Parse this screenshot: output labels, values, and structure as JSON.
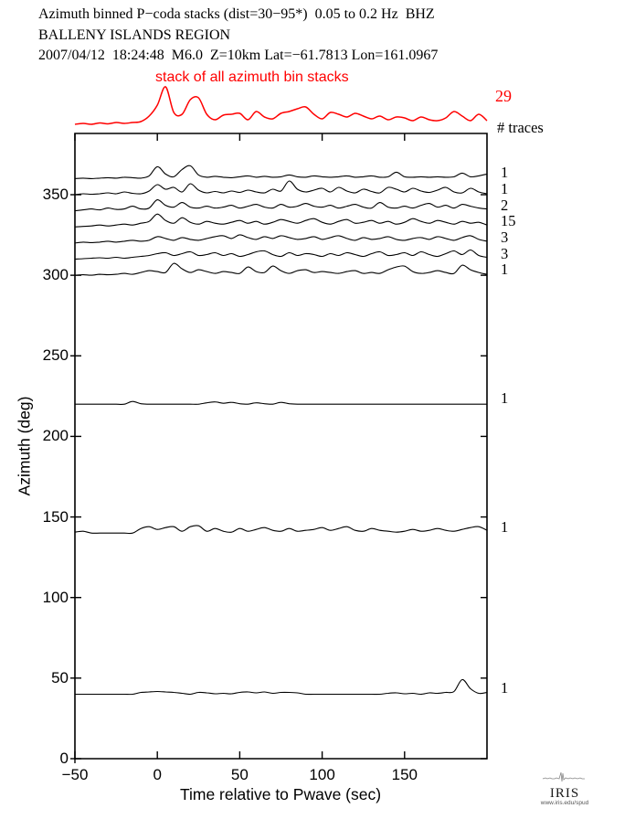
{
  "header": {
    "line1": "Azimuth binned P−coda stacks (dist=30−95*)  0.05 to 0.2 Hz  BHZ",
    "line2": "BALLENY ISLANDS REGION",
    "line3": "2007/04/12  18:24:48  M6.0  Z=10km Lat=−61.7813 Lon=161.0967"
  },
  "stack": {
    "label": "stack of all azimuth bin stacks",
    "count": "29"
  },
  "traces_header": "# traces",
  "logo": {
    "name": "IRIS",
    "url": "www.iris.edu/spud",
    "icon": "seismogram-squiggle-icon"
  },
  "colors": {
    "accent_red": "#ff0000",
    "ink": "#000000",
    "logo_grey": "#888888"
  },
  "chart_data": {
    "type": "line",
    "title": "Azimuth binned P−coda stacks (dist=30−95*) 0.05 to 0.2 Hz BHZ",
    "subtitle": "BALLENY ISLANDS REGION — 2007/04/12 18:24:48 M6.0 Z=10km Lat=−61.7813 Lon=161.0967",
    "xlabel": "Time relative to Pwave (sec)",
    "ylabel": "Azimuth (deg)",
    "xlim": [
      -50,
      200
    ],
    "ylim": [
      0,
      388
    ],
    "x_ticks": [
      -50,
      0,
      50,
      100,
      150
    ],
    "y_ticks": [
      0,
      50,
      100,
      150,
      200,
      250,
      300,
      350
    ],
    "grid": false,
    "legend": "none",
    "x_start": -50,
    "x_step": 5,
    "amplitude_units": "relative amplitude (rendered px above baseline)",
    "stack_trace": {
      "label": "stack of all azimuth bin stacks",
      "num_traces": 29,
      "color": "#ff0000",
      "samples": [
        1,
        2,
        1,
        2.5,
        1.5,
        3,
        2,
        3,
        4,
        10,
        22,
        42,
        14,
        12,
        28,
        30,
        12,
        6,
        11,
        12,
        13,
        6,
        15,
        9,
        7,
        13,
        15,
        18,
        20,
        12,
        7,
        14,
        12,
        9,
        13,
        10,
        7,
        10,
        6,
        9,
        8,
        5,
        9,
        6,
        5,
        8,
        15,
        10,
        5,
        12,
        5
      ]
    },
    "bin_traces": [
      {
        "azimuth": 360,
        "num_traces": 1,
        "samples": [
          0,
          0.5,
          0,
          0.5,
          1,
          0.5,
          1.5,
          1,
          0.5,
          3,
          13,
          5,
          2,
          10,
          14,
          4,
          1.5,
          2.5,
          1.5,
          1,
          2,
          3,
          1.5,
          2.5,
          1.5,
          2,
          4,
          2,
          1.5,
          3,
          2,
          1.5,
          2,
          3,
          1.5,
          2,
          3,
          1.5,
          2,
          7,
          2,
          1.5,
          2,
          1.5,
          2,
          1.5,
          2,
          6,
          2,
          3,
          5
        ]
      },
      {
        "azimuth": 350,
        "num_traces": 1,
        "samples": [
          0,
          1,
          0.5,
          1,
          2,
          1,
          3,
          1.5,
          1,
          4,
          11,
          6,
          8,
          3,
          12,
          5,
          2,
          3.5,
          2,
          4,
          2.5,
          5,
          3,
          2,
          6,
          4,
          15,
          6,
          3,
          5,
          7,
          3,
          8,
          4,
          2,
          6,
          3.5,
          2,
          8,
          6,
          3,
          7,
          4,
          2.5,
          5,
          8,
          3,
          2,
          7,
          3,
          1
        ]
      },
      {
        "azimuth": 340,
        "num_traces": 2,
        "samples": [
          0,
          1,
          2,
          1,
          3,
          1.5,
          2,
          5,
          2,
          3,
          12,
          6,
          4,
          9,
          4,
          3,
          5,
          3,
          4,
          6,
          3,
          5,
          7,
          4,
          3,
          7,
          4,
          5,
          8,
          5,
          4,
          6,
          3,
          5,
          7,
          4,
          3,
          9,
          4,
          3,
          5,
          3,
          6,
          8,
          4,
          6,
          3,
          7,
          5,
          3,
          2
        ]
      },
      {
        "azimuth": 330,
        "num_traces": 15,
        "samples": [
          0,
          0.5,
          1,
          2,
          1,
          2,
          3,
          2,
          4,
          6,
          14,
          7,
          4,
          10,
          5,
          3,
          6,
          4,
          3,
          5,
          7,
          4,
          6,
          3,
          5,
          8,
          6,
          4,
          7,
          9,
          5,
          3,
          6,
          8,
          4,
          5,
          7,
          4,
          6,
          3,
          5,
          9,
          6,
          4,
          7,
          5,
          3,
          6,
          4,
          5,
          2
        ]
      },
      {
        "azimuth": 320,
        "num_traces": 3,
        "samples": [
          0,
          1,
          0.5,
          1,
          2,
          1,
          2,
          3,
          2,
          3,
          7,
          5,
          3,
          6,
          4,
          3,
          5,
          7,
          8,
          5,
          9,
          6,
          4,
          7,
          5,
          8,
          6,
          4,
          5,
          7,
          4,
          6,
          8,
          5,
          3,
          6,
          4,
          5,
          7,
          4,
          3,
          5,
          6,
          4,
          7,
          5,
          3,
          6,
          8,
          4,
          2
        ]
      },
      {
        "azimuth": 310,
        "num_traces": 3,
        "samples": [
          0,
          0.5,
          1,
          1.5,
          1,
          2,
          1,
          2,
          3,
          4,
          6,
          7,
          4,
          6,
          8,
          4,
          5,
          7,
          4,
          6,
          3,
          5,
          8,
          9,
          5,
          3,
          7,
          4,
          6,
          5,
          3,
          6,
          4,
          7,
          5,
          3,
          6,
          8,
          4,
          5,
          7,
          4,
          8,
          5,
          3,
          6,
          9,
          5,
          10,
          4,
          2
        ]
      },
      {
        "azimuth": 300,
        "num_traces": 1,
        "samples": [
          0,
          0.5,
          0,
          1,
          0.5,
          1,
          2,
          1,
          3,
          5,
          4,
          3,
          13,
          7,
          3,
          6,
          4,
          2,
          4,
          3,
          2,
          9,
          4,
          3,
          10,
          5,
          2,
          5,
          6,
          3,
          4,
          3,
          2,
          4,
          5,
          2,
          3,
          2,
          6,
          9,
          10,
          4,
          2,
          3,
          5,
          3,
          2,
          11,
          6,
          3,
          1
        ]
      },
      {
        "azimuth": 220,
        "num_traces": 1,
        "samples": [
          0,
          0,
          0,
          0,
          0,
          0,
          0,
          3,
          0.5,
          0,
          0,
          0,
          0,
          0,
          0,
          0,
          1.5,
          2.5,
          1,
          2,
          0.5,
          0,
          1.5,
          0.5,
          0,
          2,
          0.5,
          0,
          0,
          0,
          0,
          0,
          0,
          0,
          0,
          0,
          0,
          0,
          0,
          0,
          0,
          0,
          0,
          0,
          0,
          0,
          0,
          0,
          0,
          0,
          0
        ]
      },
      {
        "azimuth": 140,
        "num_traces": 1,
        "samples": [
          1,
          2,
          0,
          0,
          0,
          0,
          0,
          0,
          5,
          7,
          4,
          6,
          7,
          2,
          7,
          8,
          2,
          5,
          2,
          1,
          5,
          2,
          4,
          6,
          3,
          2,
          5,
          2,
          3,
          4,
          6,
          3,
          5,
          7,
          3,
          2,
          5,
          3,
          2,
          1,
          2,
          4,
          2,
          3,
          5,
          3,
          2,
          4,
          6,
          7,
          3
        ]
      },
      {
        "azimuth": 40,
        "num_traces": 1,
        "samples": [
          0,
          0,
          0,
          0,
          0,
          0,
          0,
          0,
          2,
          2.5,
          3,
          2.5,
          2,
          1,
          0,
          2,
          1.5,
          0.5,
          1,
          0.5,
          2,
          2.5,
          1.5,
          2.5,
          1,
          2,
          2,
          1.5,
          0,
          0,
          0,
          0,
          0,
          0,
          0,
          0,
          0,
          0,
          1,
          1.5,
          0.5,
          1,
          0,
          1.5,
          1,
          2,
          3,
          16,
          6,
          1,
          2
        ]
      }
    ]
  }
}
